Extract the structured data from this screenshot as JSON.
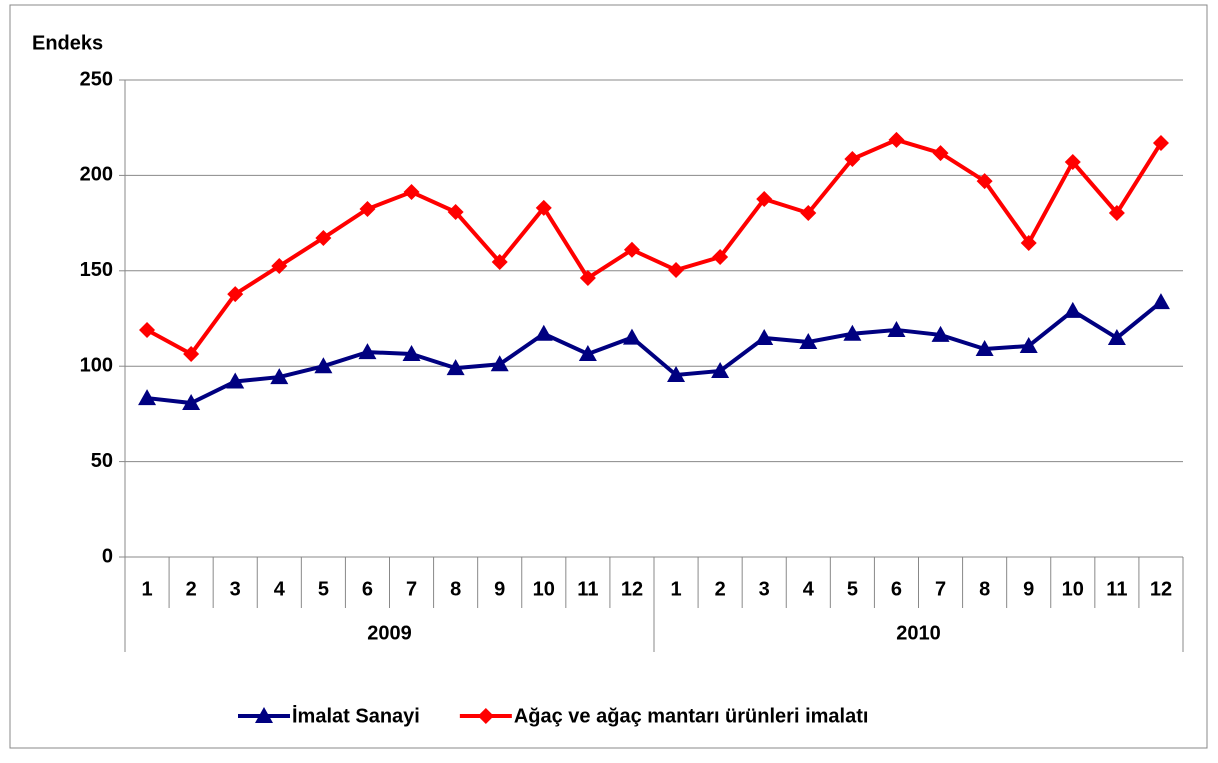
{
  "chart_data": {
    "type": "line",
    "y_label": "Endeks",
    "categories": [
      "1",
      "2",
      "3",
      "4",
      "5",
      "6",
      "7",
      "8",
      "9",
      "10",
      "11",
      "12",
      "1",
      "2",
      "3",
      "4",
      "5",
      "6",
      "7",
      "8",
      "9",
      "10",
      "11",
      "12"
    ],
    "groups": [
      "2009",
      "2010"
    ],
    "series": [
      {
        "name": "İmalat Sanayi",
        "color": "#000080",
        "marker": "triangle",
        "values": [
          83.3,
          80.7,
          92,
          94.3,
          100,
          107.4,
          106.4,
          99,
          101,
          117,
          106.4,
          115,
          95.4,
          97.5,
          114.8,
          112.7,
          117,
          119,
          116.4,
          109,
          110.6,
          129,
          114.8,
          133.6
        ]
      },
      {
        "name": "Ağaç ve ağaç mantarı ürünleri imalatı",
        "color": "#ff0000",
        "marker": "diamond",
        "values": [
          119,
          106.4,
          137.8,
          152.5,
          167.2,
          182.4,
          191.3,
          180.8,
          154.6,
          183,
          146.2,
          161,
          150.4,
          157.2,
          187.6,
          180.3,
          208.6,
          218.6,
          211.7,
          197,
          164.6,
          207,
          180.3,
          217
        ]
      }
    ],
    "ylim": [
      0,
      250
    ],
    "yticks": [
      0,
      50,
      100,
      150,
      200,
      250
    ],
    "grid": true
  }
}
